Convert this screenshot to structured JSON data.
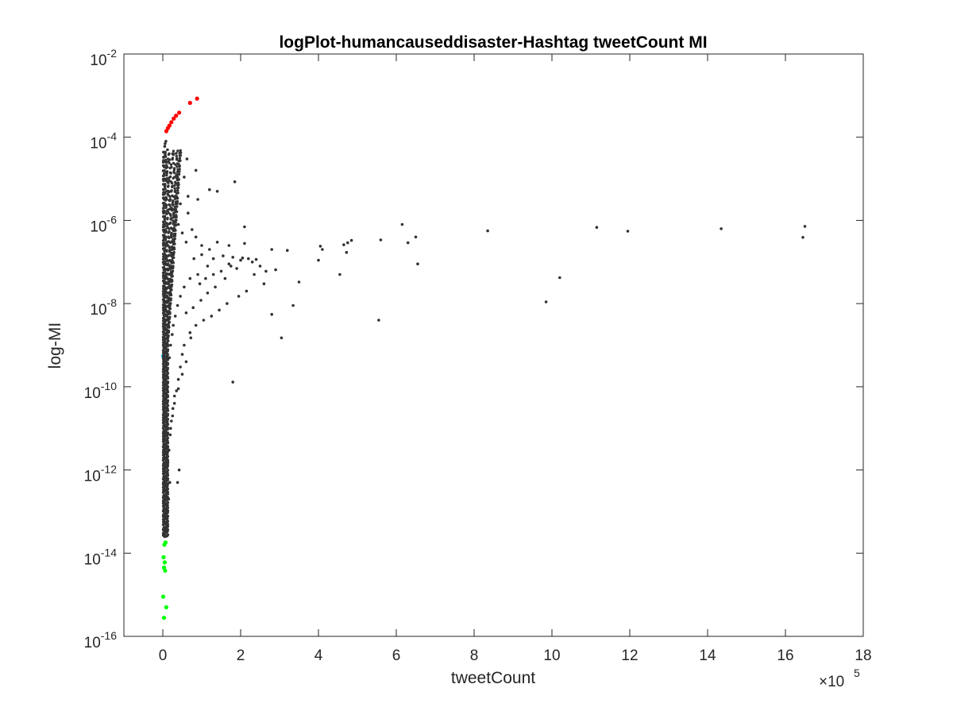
{
  "chart_data": {
    "type": "scatter",
    "title": "logPlot-humancauseddisaster-Hashtag tweetCount MI",
    "xlabel": "tweetCount",
    "ylabel": "log-MI",
    "x_multiplier_label": "×10",
    "x_multiplier_exponent": "5",
    "xlim": [
      -1,
      18
    ],
    "ylim_exponent": [
      -16,
      -2
    ],
    "y_scale": "log",
    "grid": false,
    "x_ticks": [
      0,
      2,
      4,
      6,
      8,
      10,
      12,
      14,
      16,
      18
    ],
    "x_tick_labels": [
      "0",
      "2",
      "4",
      "6",
      "8",
      "10",
      "12",
      "14",
      "16",
      "18"
    ],
    "y_ticks": [
      -16,
      -14,
      -12,
      -10,
      -8,
      -6,
      -4,
      -2
    ],
    "y_tick_base": "10",
    "y_tick_exponents": [
      "-16",
      "-14",
      "-12",
      "-10",
      "-8",
      "-6",
      "-4",
      "-2"
    ],
    "series": [
      {
        "color": "#ff0000",
        "points": [
          [
            0.09,
            0.00014
          ],
          [
            0.13,
            0.000165
          ],
          [
            0.17,
            0.00019
          ],
          [
            0.22,
            0.00023
          ],
          [
            0.28,
            0.00028
          ],
          [
            0.34,
            0.00033
          ],
          [
            0.42,
            0.00039
          ],
          [
            0.7,
            0.00067
          ],
          [
            0.88,
            0.00085
          ]
        ]
      },
      {
        "color": "#00ff00",
        "points": [
          [
            0.04,
            1.6e-14
          ],
          [
            0.07,
            1.8e-14
          ],
          [
            0.02,
            8e-15
          ],
          [
            0.05,
            6e-15
          ],
          [
            0.03,
            4.5e-15
          ],
          [
            0.06,
            3.8e-15
          ],
          [
            0.01,
            9e-16
          ],
          [
            0.09,
            5e-16
          ],
          [
            0.03,
            2.8e-16
          ]
        ]
      },
      {
        "color": "#00bfff",
        "points": [
          [
            0.01,
            5.5e-10
          ]
        ]
      },
      {
        "color": "#333333",
        "points": [
          [
            0.08,
            8e-05
          ],
          [
            0.12,
            5e-05
          ],
          [
            0.25,
            4e-05
          ],
          [
            0.62,
            3e-05
          ],
          [
            0.85,
            1.6e-05
          ],
          [
            0.35,
            1.2e-05
          ],
          [
            0.55,
            1.1e-05
          ],
          [
            1.85,
            8.5e-06
          ],
          [
            1.2,
            5.5e-06
          ],
          [
            1.4,
            5e-06
          ],
          [
            0.65,
            3.8e-06
          ],
          [
            0.9,
            3.2e-06
          ],
          [
            0.45,
            2.5e-06
          ],
          [
            0.3,
            1.8e-06
          ],
          [
            2.1,
            7e-07
          ],
          [
            2.1,
            2.8e-07
          ],
          [
            2.8,
            2e-07
          ],
          [
            3.2,
            1.9e-07
          ],
          [
            4.05,
            2.4e-07
          ],
          [
            4.1,
            2e-07
          ],
          [
            4.0,
            1.1e-07
          ],
          [
            4.65,
            2.6e-07
          ],
          [
            4.75,
            2.9e-07
          ],
          [
            4.85,
            3.3e-07
          ],
          [
            4.72,
            1.7e-07
          ],
          [
            5.6,
            3.4e-07
          ],
          [
            6.15,
            8e-07
          ],
          [
            6.3,
            2.9e-07
          ],
          [
            6.5,
            4e-07
          ],
          [
            6.55,
            9e-08
          ],
          [
            8.35,
            5.6e-07
          ],
          [
            11.15,
            6.8e-07
          ],
          [
            11.95,
            5.5e-07
          ],
          [
            14.35,
            6.3e-07
          ],
          [
            16.45,
            3.9e-07
          ],
          [
            16.5,
            7.2e-07
          ],
          [
            4.55,
            5e-08
          ],
          [
            3.5,
            3.3e-08
          ],
          [
            10.2,
            4.2e-08
          ],
          [
            9.85,
            1.1e-08
          ],
          [
            3.35,
            9e-09
          ],
          [
            2.8,
            5.5e-09
          ],
          [
            5.55,
            4e-09
          ],
          [
            3.05,
            1.5e-09
          ],
          [
            1.8,
            1.3e-10
          ],
          [
            2.2,
            1.2e-07
          ],
          [
            2.5,
            8e-08
          ],
          [
            2.3,
            1e-07
          ],
          [
            2.0,
            1.1e-07
          ],
          [
            1.7,
            9e-08
          ],
          [
            1.5,
            6e-08
          ],
          [
            1.3,
            5e-08
          ],
          [
            1.1,
            4e-08
          ],
          [
            0.95,
            3e-08
          ],
          [
            2.6,
            3e-08
          ],
          [
            2.35,
            5e-08
          ],
          [
            2.15,
            2e-08
          ],
          [
            1.95,
            1.5e-08
          ],
          [
            1.65,
            1e-08
          ],
          [
            1.45,
            7e-09
          ],
          [
            1.25,
            5e-09
          ],
          [
            1.05,
            4e-09
          ],
          [
            0.85,
            3e-09
          ],
          [
            0.7,
            2e-09
          ],
          [
            2.9,
            6.5e-08
          ],
          [
            2.65,
            6e-08
          ],
          [
            1.9,
            7e-08
          ],
          [
            1.75,
            8e-08
          ],
          [
            1.6,
            4e-08
          ],
          [
            1.35,
            2.5e-08
          ],
          [
            1.15,
            1.8e-08
          ],
          [
            0.98,
            1.2e-08
          ],
          [
            0.78,
            8e-09
          ],
          [
            0.6,
            6e-09
          ],
          [
            0.72,
            1.5e-09
          ],
          [
            0.55,
            1e-09
          ],
          [
            0.5,
            6e-10
          ],
          [
            0.45,
            3e-10
          ],
          [
            0.4,
            1.5e-10
          ],
          [
            0.35,
            8e-11
          ],
          [
            0.3,
            4e-11
          ],
          [
            0.25,
            2e-11
          ],
          [
            0.2,
            1e-11
          ],
          [
            0.42,
            1e-12
          ],
          [
            0.38,
            5e-13
          ],
          [
            0.15,
            2e-13
          ],
          [
            0.12,
            1e-13
          ],
          [
            0.1,
            4e-14
          ],
          [
            0.18,
            5e-13
          ],
          [
            1.4,
            3e-07
          ],
          [
            1.7,
            2.5e-07
          ],
          [
            1.2,
            2e-07
          ],
          [
            1.0,
            1.5e-07
          ],
          [
            0.8,
            1.2e-07
          ],
          [
            0.6,
            3e-07
          ],
          [
            0.5,
            5e-07
          ],
          [
            0.4,
            8e-07
          ],
          [
            0.33,
            1e-06
          ],
          [
            0.28,
            1.5e-06
          ],
          [
            0.22,
            2e-06
          ],
          [
            0.18,
            3e-06
          ],
          [
            0.15,
            5e-06
          ],
          [
            0.14,
            8e-06
          ],
          [
            0.11,
            1.5e-05
          ],
          [
            0.09,
            2.5e-05
          ],
          [
            0.07,
            3.5e-05
          ],
          [
            0.05,
            6e-05
          ],
          [
            0.06,
            7e-05
          ],
          [
            0.1,
            1e-05
          ],
          [
            0.65,
            1.5e-06
          ],
          [
            0.75,
            6e-07
          ],
          [
            0.85,
            4e-07
          ],
          [
            1.0,
            2.5e-07
          ],
          [
            1.15,
            8e-08
          ],
          [
            1.3,
            1.2e-07
          ],
          [
            1.55,
            1.4e-07
          ],
          [
            1.8,
            1.3e-07
          ],
          [
            2.05,
            1.25e-07
          ],
          [
            2.4,
            1.15e-07
          ],
          [
            0.9,
            5e-08
          ],
          [
            0.7,
            4e-08
          ],
          [
            0.55,
            2.5e-08
          ],
          [
            0.45,
            1.5e-08
          ],
          [
            0.38,
            9e-09
          ],
          [
            0.32,
            5e-09
          ],
          [
            0.27,
            3e-09
          ],
          [
            0.24,
            1.8e-09
          ],
          [
            0.2,
            1e-09
          ],
          [
            0.17,
            5e-10
          ],
          [
            0.6,
            4e-10
          ],
          [
            0.5,
            2e-10
          ],
          [
            0.4,
            9e-11
          ],
          [
            0.3,
            6e-11
          ],
          [
            0.26,
            3e-11
          ],
          [
            0.22,
            1.5e-11
          ],
          [
            0.19,
            7e-12
          ],
          [
            0.16,
            3e-12
          ],
          [
            0.13,
            1.5e-12
          ],
          [
            0.11,
            6e-13
          ]
        ]
      }
    ]
  }
}
